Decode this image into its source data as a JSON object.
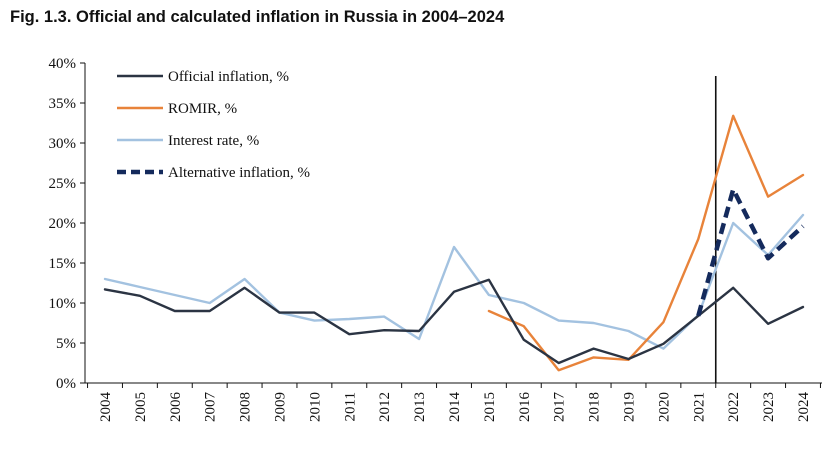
{
  "figure": {
    "title": "Fig. 1.3. Official and calculated inflation in Russia in 2004–2024"
  },
  "chart_data": {
    "type": "line",
    "title": "Fig. 1.3. Official and calculated inflation in Russia in 2004–2024",
    "xlabel": "",
    "ylabel": "",
    "ylim": [
      0,
      40
    ],
    "yticks": [
      "0%",
      "5%",
      "10%",
      "15%",
      "20%",
      "25%",
      "30%",
      "35%",
      "40%"
    ],
    "grid": false,
    "legend_position": "top-left",
    "categories": [
      "2004",
      "2005",
      "2006",
      "2007",
      "2008",
      "2009",
      "2010",
      "2011",
      "2012",
      "2013",
      "2014",
      "2015",
      "2016",
      "2017",
      "2018",
      "2019",
      "2020",
      "2021",
      "2022",
      "2023",
      "2024"
    ],
    "vertical_marker": {
      "between": [
        "2021",
        "2022"
      ]
    },
    "series": [
      {
        "name": "Official inflation, %",
        "color": "#2b3443",
        "style": "solid",
        "values": [
          11.7,
          10.9,
          9.0,
          9.0,
          11.9,
          8.8,
          8.8,
          6.1,
          6.6,
          6.5,
          11.4,
          12.9,
          5.4,
          2.5,
          4.3,
          3.0,
          4.9,
          8.4,
          11.9,
          7.4,
          9.5
        ]
      },
      {
        "name": "ROMIR, %",
        "color": "#e8833a",
        "style": "solid",
        "values": [
          null,
          null,
          null,
          null,
          null,
          null,
          null,
          null,
          null,
          null,
          null,
          9.0,
          7.1,
          1.6,
          3.2,
          2.9,
          7.6,
          18.0,
          33.4,
          23.3,
          26.0
        ]
      },
      {
        "name": "Interest rate, %",
        "color": "#a3c2e0",
        "style": "solid",
        "values": [
          13.0,
          12.0,
          11.0,
          10.0,
          13.0,
          8.8,
          7.8,
          8.0,
          8.3,
          5.5,
          17.0,
          11.0,
          10.0,
          7.8,
          7.5,
          6.5,
          4.3,
          8.5,
          20.0,
          16.0,
          21.0
        ]
      },
      {
        "name": "Alternative inflation, %",
        "color": "#142a5c",
        "style": "dashed",
        "values": [
          null,
          null,
          null,
          null,
          null,
          null,
          null,
          null,
          null,
          null,
          null,
          null,
          null,
          null,
          null,
          null,
          null,
          8.4,
          24.2,
          15.6,
          19.6
        ]
      }
    ]
  }
}
